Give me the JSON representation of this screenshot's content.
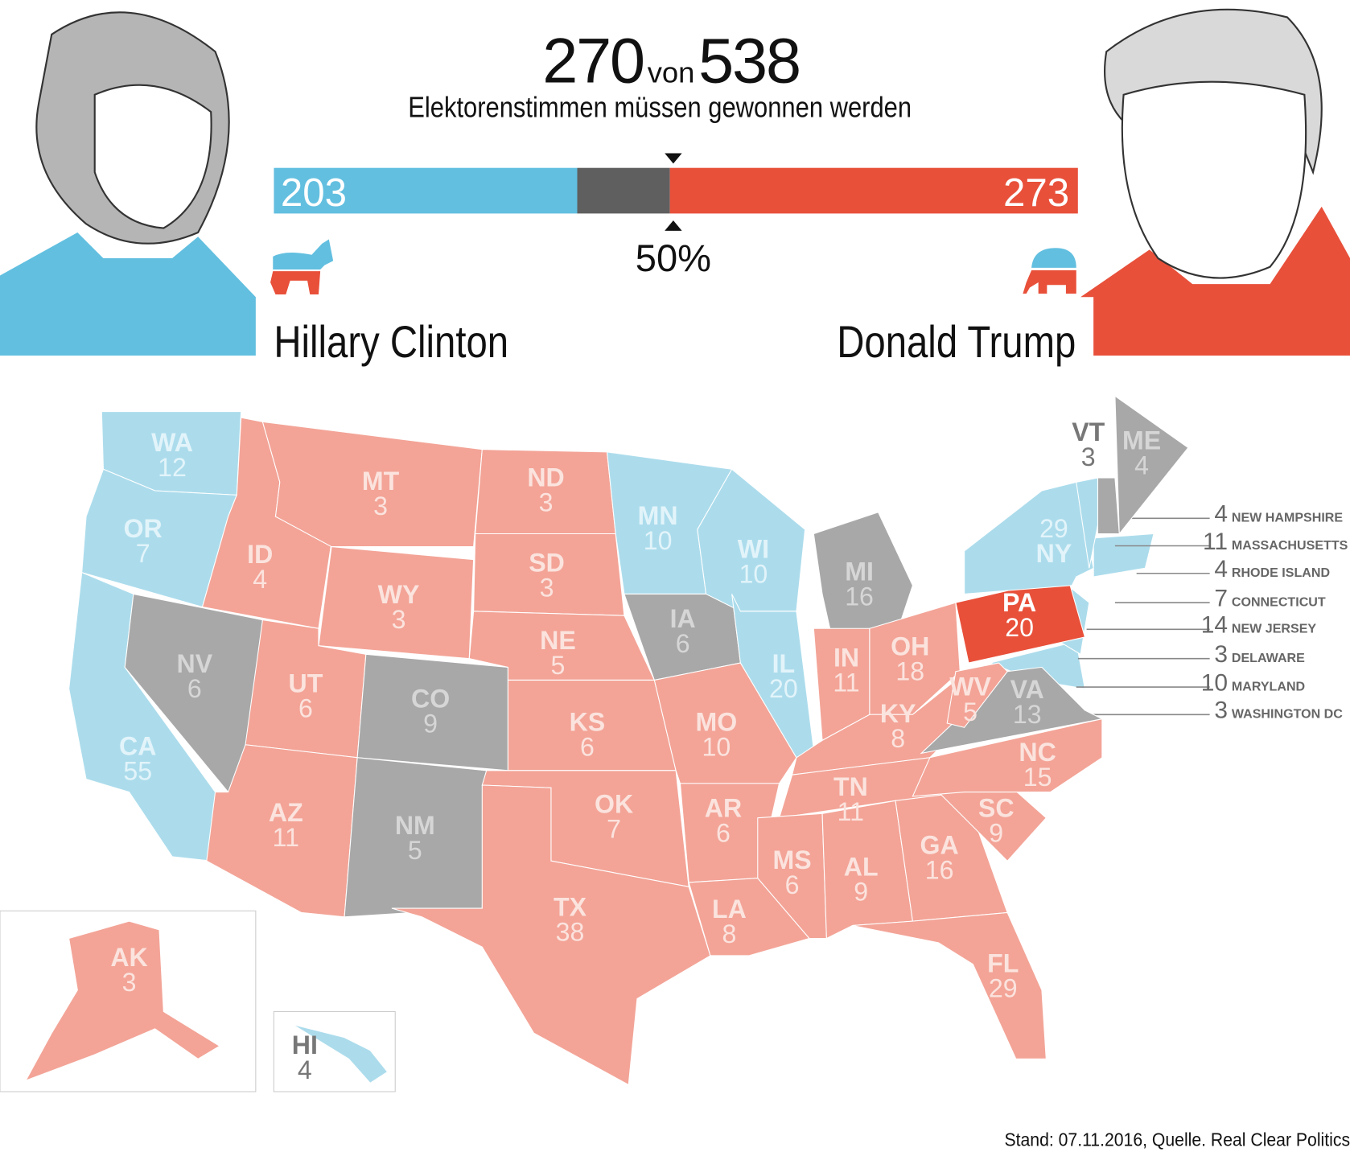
{
  "header": {
    "needed": "270",
    "von": "von",
    "total": "538",
    "subtitle": "Elektorenstimmen müssen gewonnen werden",
    "threshold_label": "50%"
  },
  "bar": {
    "clinton": 203,
    "undecided": 62,
    "trump": 273,
    "clinton_label": "203",
    "trump_label": "273",
    "colors": {
      "clinton": "#62bfe0",
      "undecided": "#5f5f5f",
      "trump": "#e8503a"
    }
  },
  "candidates": {
    "left": {
      "name": "Hillary Clinton",
      "party_icon": "democratic-donkey-icon"
    },
    "right": {
      "name": "Donald Trump",
      "party_icon": "republican-elephant-icon"
    }
  },
  "map_colors": {
    "dem": "#acdcec",
    "rep": "#f3a497",
    "tossup": "#a8a8a8",
    "highlight": "#e8503a"
  },
  "states": [
    {
      "abbr": "WA",
      "votes": "12",
      "status": "dem"
    },
    {
      "abbr": "OR",
      "votes": "7",
      "status": "dem"
    },
    {
      "abbr": "CA",
      "votes": "55",
      "status": "dem"
    },
    {
      "abbr": "NV",
      "votes": "6",
      "status": "tossup"
    },
    {
      "abbr": "ID",
      "votes": "4",
      "status": "rep"
    },
    {
      "abbr": "MT",
      "votes": "3",
      "status": "rep"
    },
    {
      "abbr": "WY",
      "votes": "3",
      "status": "rep"
    },
    {
      "abbr": "UT",
      "votes": "6",
      "status": "rep"
    },
    {
      "abbr": "CO",
      "votes": "9",
      "status": "tossup"
    },
    {
      "abbr": "AZ",
      "votes": "11",
      "status": "rep"
    },
    {
      "abbr": "NM",
      "votes": "5",
      "status": "tossup"
    },
    {
      "abbr": "ND",
      "votes": "3",
      "status": "rep"
    },
    {
      "abbr": "SD",
      "votes": "3",
      "status": "rep"
    },
    {
      "abbr": "NE",
      "votes": "5",
      "status": "rep"
    },
    {
      "abbr": "KS",
      "votes": "6",
      "status": "rep"
    },
    {
      "abbr": "OK",
      "votes": "7",
      "status": "rep"
    },
    {
      "abbr": "TX",
      "votes": "38",
      "status": "rep"
    },
    {
      "abbr": "MN",
      "votes": "10",
      "status": "dem"
    },
    {
      "abbr": "IA",
      "votes": "6",
      "status": "tossup"
    },
    {
      "abbr": "MO",
      "votes": "10",
      "status": "rep"
    },
    {
      "abbr": "AR",
      "votes": "6",
      "status": "rep"
    },
    {
      "abbr": "LA",
      "votes": "8",
      "status": "rep"
    },
    {
      "abbr": "WI",
      "votes": "10",
      "status": "dem"
    },
    {
      "abbr": "IL",
      "votes": "20",
      "status": "dem"
    },
    {
      "abbr": "MI",
      "votes": "16",
      "status": "tossup"
    },
    {
      "abbr": "IN",
      "votes": "11",
      "status": "rep"
    },
    {
      "abbr": "OH",
      "votes": "18",
      "status": "rep"
    },
    {
      "abbr": "KY",
      "votes": "8",
      "status": "rep"
    },
    {
      "abbr": "TN",
      "votes": "11",
      "status": "rep"
    },
    {
      "abbr": "MS",
      "votes": "6",
      "status": "rep"
    },
    {
      "abbr": "AL",
      "votes": "9",
      "status": "rep"
    },
    {
      "abbr": "GA",
      "votes": "16",
      "status": "rep"
    },
    {
      "abbr": "FL",
      "votes": "29",
      "status": "rep"
    },
    {
      "abbr": "SC",
      "votes": "9",
      "status": "rep"
    },
    {
      "abbr": "NC",
      "votes": "15",
      "status": "rep"
    },
    {
      "abbr": "VA",
      "votes": "13",
      "status": "tossup"
    },
    {
      "abbr": "WV",
      "votes": "5",
      "status": "rep"
    },
    {
      "abbr": "PA",
      "votes": "20",
      "status": "highlight"
    },
    {
      "abbr": "NY",
      "votes": "29",
      "status": "dem"
    },
    {
      "abbr": "VT",
      "votes": "3",
      "status": "dem"
    },
    {
      "abbr": "ME",
      "votes": "4",
      "status": "tossup"
    },
    {
      "abbr": "AK",
      "votes": "3",
      "status": "rep"
    },
    {
      "abbr": "HI",
      "votes": "4",
      "status": "dem"
    }
  ],
  "legend": [
    {
      "votes": "4",
      "name": "NEW HAMPSHIRE"
    },
    {
      "votes": "11",
      "name": "MASSACHUSETTS"
    },
    {
      "votes": "4",
      "name": "RHODE ISLAND"
    },
    {
      "votes": "7",
      "name": "CONNECTICUT"
    },
    {
      "votes": "14",
      "name": "NEW JERSEY"
    },
    {
      "votes": "3",
      "name": "DELAWARE"
    },
    {
      "votes": "10",
      "name": "MARYLAND"
    },
    {
      "votes": "3",
      "name": "WASHINGTON DC"
    }
  ],
  "footer": "Stand: 07.11.2016, Quelle. Real Clear Politics"
}
